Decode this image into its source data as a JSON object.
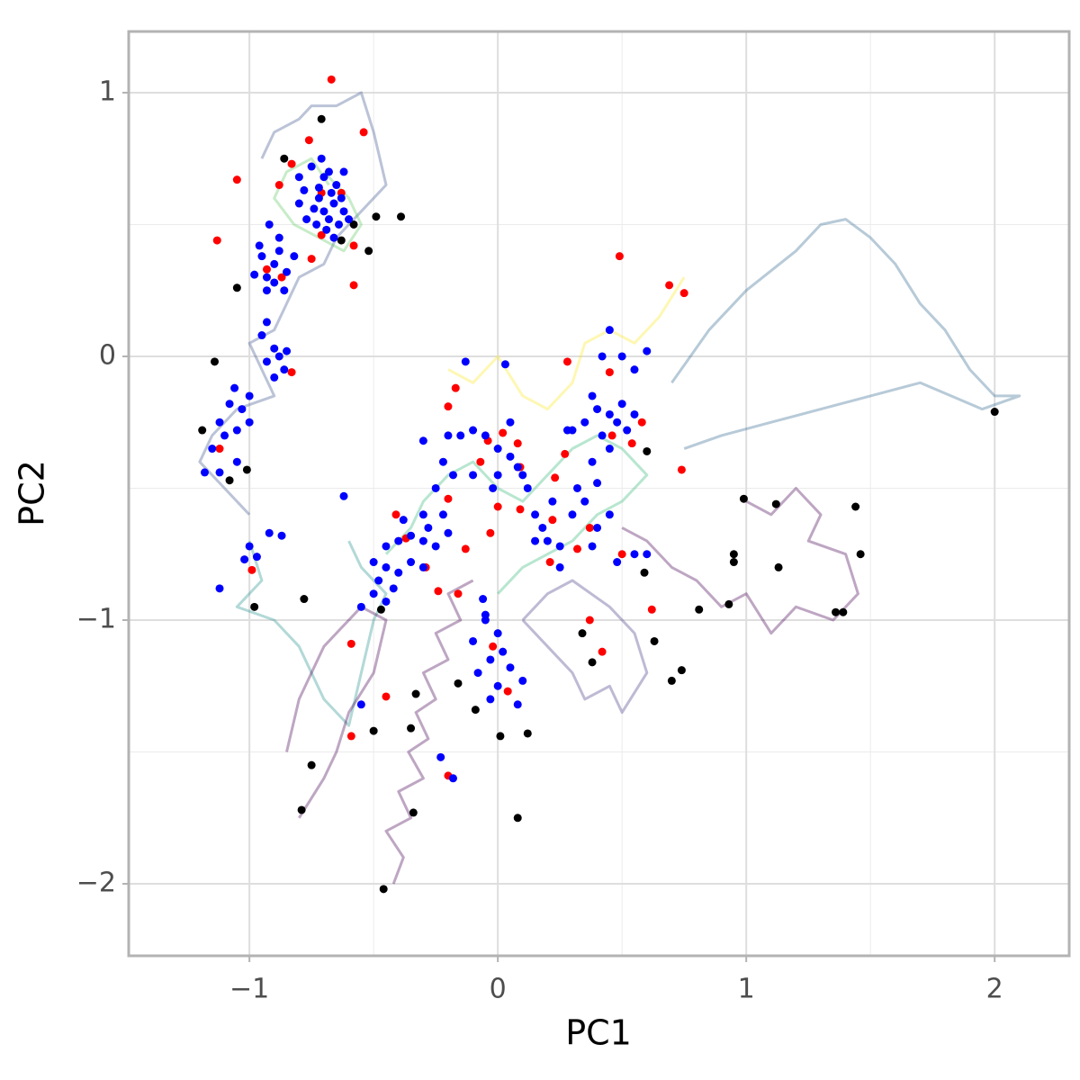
{
  "chart_data": {
    "type": "scatter",
    "x_label": "PC1",
    "y_label": "PC2",
    "xlim": [
      -1.486,
      2.3
    ],
    "ylim": [
      -2.273,
      1.232
    ],
    "xticks": [
      {
        "value": -1,
        "label": "−1"
      },
      0,
      1,
      2
    ],
    "yticks": [
      {
        "value": -2,
        "label": "−2"
      },
      {
        "value": -1,
        "label": "−1"
      },
      0,
      1
    ],
    "xminorticks": [
      -0.5,
      0.5,
      1.5
    ],
    "yminorticks": [
      -1.5,
      -0.5,
      0.5
    ],
    "grid": true,
    "series": [
      {
        "type": "line",
        "color": "#440154",
        "opacity": 0.35,
        "x": [
          -0.42,
          -0.38,
          -0.45,
          -0.35,
          -0.4,
          -0.3,
          -0.36,
          -0.28,
          -0.33,
          -0.25,
          -0.3,
          -0.2,
          -0.25,
          -0.15,
          -0.2,
          -0.1
        ],
        "values": [
          -2.0,
          -1.9,
          -1.8,
          -1.75,
          -1.65,
          -1.6,
          -1.5,
          -1.45,
          -1.35,
          -1.3,
          -1.2,
          -1.15,
          -1.05,
          -1.0,
          -0.9,
          -0.85
        ]
      },
      {
        "type": "line",
        "color": "#440154",
        "opacity": 0.35,
        "x": [
          1.0,
          1.1,
          1.2,
          1.3,
          1.25,
          1.4,
          1.45,
          1.35,
          1.2,
          1.1,
          1.0,
          0.9,
          0.8,
          0.7,
          0.6,
          0.5
        ],
        "values": [
          -0.55,
          -0.6,
          -0.5,
          -0.6,
          -0.7,
          -0.75,
          -0.9,
          -1.0,
          -0.95,
          -1.05,
          -0.9,
          -0.95,
          -0.85,
          -0.8,
          -0.7,
          -0.65
        ]
      },
      {
        "type": "line",
        "color": "#31688e",
        "opacity": 0.35,
        "x": [
          0.7,
          0.85,
          1.0,
          1.2,
          1.3,
          1.4,
          1.5,
          1.6,
          1.7,
          1.8,
          1.9,
          2.0,
          2.1,
          1.95,
          1.7,
          1.5,
          1.3,
          1.1,
          0.9,
          0.75
        ],
        "values": [
          -0.1,
          0.1,
          0.25,
          0.4,
          0.5,
          0.52,
          0.45,
          0.35,
          0.2,
          0.1,
          -0.05,
          -0.15,
          -0.15,
          -0.2,
          -0.1,
          -0.15,
          -0.2,
          -0.25,
          -0.3,
          -0.35
        ]
      },
      {
        "type": "line",
        "color": "#35b779",
        "opacity": 0.35,
        "x": [
          -0.45,
          -0.35,
          -0.3,
          -0.2,
          -0.1,
          0.0,
          0.1,
          0.2,
          0.3,
          0.4,
          0.5,
          0.6,
          0.5,
          0.4,
          0.3,
          0.2,
          0.1,
          0.0
        ],
        "values": [
          -0.75,
          -0.65,
          -0.55,
          -0.45,
          -0.4,
          -0.5,
          -0.55,
          -0.45,
          -0.35,
          -0.3,
          -0.35,
          -0.45,
          -0.55,
          -0.6,
          -0.7,
          -0.75,
          -0.8,
          -0.9
        ]
      },
      {
        "type": "line",
        "color": "#fde725",
        "opacity": 0.35,
        "x": [
          -0.2,
          -0.1,
          0.0,
          0.1,
          0.2,
          0.3,
          0.35,
          0.45,
          0.55,
          0.65,
          0.75
        ],
        "values": [
          -0.05,
          -0.1,
          0.0,
          -0.15,
          -0.2,
          -0.1,
          0.05,
          0.1,
          0.05,
          0.15,
          0.3
        ]
      },
      {
        "type": "line",
        "color": "#3b528b",
        "opacity": 0.35,
        "x": [
          -0.95,
          -0.9,
          -0.8,
          -0.75,
          -0.65,
          -0.55,
          -0.5,
          -0.45,
          -0.55,
          -0.65,
          -0.7,
          -0.8,
          -0.85,
          -0.9,
          -1.0,
          -0.95,
          -0.9,
          -1.05,
          -1.15,
          -1.2,
          -1.1,
          -1.0
        ],
        "values": [
          0.75,
          0.85,
          0.9,
          0.95,
          0.95,
          1.0,
          0.85,
          0.65,
          0.55,
          0.45,
          0.35,
          0.3,
          0.2,
          0.1,
          0.05,
          -0.05,
          -0.15,
          -0.2,
          -0.3,
          -0.4,
          -0.5,
          -0.6
        ]
      },
      {
        "type": "line",
        "color": "#21918c",
        "opacity": 0.35,
        "x": [
          -1.0,
          -0.95,
          -1.05,
          -0.9,
          -0.8,
          -0.7,
          -0.6,
          -0.55,
          -0.5,
          -0.45,
          -0.55,
          -0.6
        ],
        "values": [
          -0.7,
          -0.85,
          -0.95,
          -1.0,
          -1.1,
          -1.3,
          -1.4,
          -1.2,
          -1.0,
          -0.9,
          -0.8,
          -0.7
        ]
      },
      {
        "type": "line",
        "color": "#440154",
        "opacity": 0.35,
        "x": [
          -0.8,
          -0.7,
          -0.65,
          -0.6,
          -0.5,
          -0.45,
          -0.55,
          -0.7,
          -0.8,
          -0.85
        ],
        "values": [
          -1.75,
          -1.6,
          -1.5,
          -1.35,
          -1.2,
          -1.0,
          -0.95,
          -1.1,
          -1.3,
          -1.5
        ]
      },
      {
        "type": "line",
        "color": "#5ec962",
        "opacity": 0.35,
        "x": [
          -0.7,
          -0.6,
          -0.55,
          -0.62,
          -0.72,
          -0.82,
          -0.9,
          -0.85,
          -0.75,
          -0.68
        ],
        "values": [
          0.7,
          0.6,
          0.5,
          0.4,
          0.45,
          0.5,
          0.6,
          0.7,
          0.75,
          0.65
        ]
      },
      {
        "type": "line",
        "color": "#443983",
        "opacity": 0.35,
        "x": [
          0.1,
          0.2,
          0.3,
          0.35,
          0.45,
          0.5,
          0.6,
          0.55,
          0.45,
          0.3,
          0.2,
          0.1
        ],
        "values": [
          -1.0,
          -1.1,
          -1.2,
          -1.3,
          -1.25,
          -1.35,
          -1.2,
          -1.05,
          -0.95,
          -0.85,
          -0.9,
          -1.0
        ]
      },
      {
        "type": "scatter",
        "color": "#000000",
        "x": [
          -0.71,
          -0.86,
          -0.49,
          -0.39,
          -0.58,
          -0.63,
          -0.52,
          -1.05,
          -1.14,
          -1.19,
          -1.01,
          -1.08,
          -0.98,
          -0.78,
          -0.47,
          -0.33,
          -0.5,
          -0.35,
          -0.16,
          -0.09,
          0.01,
          0.12,
          -0.75,
          -0.79,
          -0.34,
          0.08,
          -0.46,
          0.34,
          0.38,
          0.63,
          0.7,
          0.6,
          0.59,
          0.81,
          0.93,
          0.99,
          1.12,
          0.95,
          0.95,
          1.13,
          1.44,
          1.46,
          1.36,
          1.39,
          2.0,
          0.74
        ],
        "values": [
          0.9,
          0.75,
          0.53,
          0.53,
          0.5,
          0.44,
          0.4,
          0.26,
          -0.02,
          -0.28,
          -0.43,
          -0.47,
          -0.95,
          -0.92,
          -0.96,
          -1.28,
          -1.42,
          -1.41,
          -1.24,
          -1.34,
          -1.44,
          -1.43,
          -1.55,
          -1.72,
          -1.73,
          -1.75,
          -2.02,
          -1.05,
          -1.16,
          -1.08,
          -1.23,
          -0.36,
          -0.82,
          -0.96,
          -0.94,
          -0.54,
          -0.56,
          -0.75,
          -0.78,
          -0.8,
          -0.57,
          -0.75,
          -0.97,
          -0.97,
          -0.21,
          -1.19
        ]
      },
      {
        "type": "scatter",
        "color": "#ff0000",
        "x": [
          -0.67,
          -0.54,
          -1.05,
          -0.76,
          -0.83,
          -0.88,
          -0.71,
          -0.63,
          -0.75,
          -0.93,
          -0.87,
          -1.13,
          -0.71,
          -0.58,
          -0.58,
          0.49,
          0.69,
          0.75,
          -0.83,
          -1.12,
          -0.99,
          0.28,
          -0.17,
          -0.2,
          -0.04,
          0.02,
          0.08,
          -0.07,
          0.27,
          0.23,
          0.09,
          0.45,
          0.46,
          0.54,
          0.58,
          0.74,
          -0.2,
          -0.41,
          0.0,
          0.09,
          0.22,
          0.37,
          -0.37,
          -0.13,
          -0.29,
          -0.24,
          -0.16,
          0.32,
          0.21,
          0.5,
          -0.03,
          0.62,
          0.37,
          0.42,
          -0.02,
          -0.59,
          -0.45,
          -0.59,
          0.04,
          -0.2
        ],
        "values": [
          1.05,
          0.85,
          0.67,
          0.82,
          0.73,
          0.65,
          0.62,
          0.62,
          0.37,
          0.33,
          0.3,
          0.44,
          0.46,
          0.27,
          0.42,
          0.38,
          0.27,
          0.24,
          -0.06,
          -0.35,
          -0.81,
          -0.02,
          -0.12,
          -0.19,
          -0.32,
          -0.29,
          -0.33,
          -0.4,
          -0.37,
          -0.46,
          -0.42,
          -0.06,
          -0.3,
          -0.33,
          -0.25,
          -0.43,
          -0.54,
          -0.6,
          -0.57,
          -0.58,
          -0.62,
          -0.65,
          -0.69,
          -0.73,
          -0.8,
          -0.89,
          -0.9,
          -0.73,
          -0.78,
          -0.75,
          -0.67,
          -0.96,
          -1.0,
          -1.12,
          -1.1,
          -1.09,
          -1.29,
          -1.44,
          -1.27,
          -1.59
        ]
      },
      {
        "type": "scatter",
        "color": "#0000ff",
        "x": [
          -0.75,
          -0.7,
          -0.68,
          -0.65,
          -0.72,
          -0.7,
          -0.66,
          -0.62,
          -0.74,
          -0.68,
          -0.64,
          -0.6,
          -0.78,
          -0.8,
          -0.72,
          -0.67,
          -0.63,
          -0.69,
          -0.73,
          -0.77,
          -0.71,
          -0.62,
          -0.66,
          -0.8,
          -0.95,
          -0.9,
          -0.88,
          -0.93,
          -0.85,
          -0.98,
          -0.9,
          -0.86,
          -0.93,
          -0.82,
          -0.88,
          -0.96,
          -0.92,
          -0.9,
          -0.88,
          -0.93,
          -0.86,
          -0.9,
          -0.95,
          -0.93,
          -0.85,
          -1.08,
          -1.03,
          -1.0,
          -1.05,
          -1.1,
          -1.0,
          -1.06,
          -1.12,
          -1.15,
          -1.12,
          -1.05,
          -1.18,
          -1.0,
          -1.02,
          -0.97,
          -1.12,
          -0.92,
          -0.87,
          -0.45,
          -0.4,
          -0.35,
          -0.3,
          -0.25,
          -0.45,
          -0.4,
          -0.35,
          -0.3,
          -0.5,
          -0.48,
          -0.42,
          -0.5,
          -0.3,
          -0.28,
          -0.22,
          -0.25,
          -0.22,
          -0.2,
          -0.15,
          -0.1,
          -0.18,
          -0.1,
          -0.38,
          -0.55,
          -0.45,
          -0.2,
          -0.3,
          -0.05,
          0.0,
          0.02,
          -0.03,
          -0.08,
          0.05,
          0.0,
          -0.05,
          -0.06,
          -0.1,
          0.08,
          -0.03,
          -0.05,
          0.0,
          0.05,
          0.08,
          0.0,
          -0.02,
          0.1,
          0.12,
          0.05,
          0.15,
          0.18,
          0.2,
          0.25,
          0.15,
          0.25,
          0.22,
          0.3,
          0.38,
          0.4,
          0.45,
          0.48,
          0.5,
          0.42,
          0.45,
          0.52,
          0.35,
          0.3,
          0.38,
          0.4,
          0.35,
          0.32,
          0.55,
          0.45,
          0.5,
          0.55,
          0.6,
          0.42,
          0.28,
          0.45,
          0.4,
          0.38,
          0.48,
          0.55,
          0.6,
          -0.13,
          0.03,
          -0.62,
          -0.55,
          0.1,
          -0.18,
          -0.23
        ],
        "values": [
          0.72,
          0.68,
          0.7,
          0.65,
          0.6,
          0.55,
          0.58,
          0.55,
          0.56,
          0.52,
          0.5,
          0.52,
          0.63,
          0.58,
          0.64,
          0.62,
          0.6,
          0.48,
          0.5,
          0.52,
          0.75,
          0.7,
          0.45,
          0.68,
          0.38,
          0.35,
          0.4,
          0.3,
          0.32,
          0.31,
          0.28,
          0.25,
          0.25,
          0.38,
          0.45,
          0.42,
          0.5,
          0.03,
          0.0,
          -0.02,
          -0.05,
          -0.08,
          0.08,
          0.13,
          0.02,
          -0.18,
          -0.2,
          -0.15,
          -0.28,
          -0.3,
          -0.25,
          -0.12,
          -0.25,
          -0.35,
          -0.44,
          -0.4,
          -0.44,
          -0.72,
          -0.77,
          -0.76,
          -0.88,
          -0.67,
          -0.68,
          -0.72,
          -0.7,
          -0.68,
          -0.7,
          -0.72,
          -0.8,
          -0.82,
          -0.78,
          -0.8,
          -0.78,
          -0.85,
          -0.88,
          -0.9,
          -0.6,
          -0.65,
          -0.6,
          -0.5,
          -0.4,
          -0.3,
          -0.3,
          -0.28,
          -0.45,
          -0.45,
          -0.62,
          -0.95,
          -0.93,
          -0.67,
          -0.32,
          -1.0,
          -1.05,
          -1.12,
          -1.15,
          -1.2,
          -1.18,
          -1.25,
          -0.98,
          -0.92,
          -1.08,
          -1.32,
          -1.3,
          -0.3,
          -0.35,
          -0.38,
          -0.42,
          -0.45,
          -0.5,
          -0.45,
          -0.5,
          -0.25,
          -0.6,
          -0.65,
          -0.7,
          -0.72,
          -0.7,
          -0.8,
          -0.55,
          -0.6,
          -0.15,
          -0.2,
          -0.22,
          -0.25,
          -0.18,
          -0.3,
          -0.35,
          -0.28,
          -0.25,
          -0.28,
          -0.4,
          -0.48,
          -0.55,
          -0.5,
          -0.22,
          0.1,
          0.0,
          -0.05,
          0.02,
          0.0,
          -0.28,
          -0.6,
          -0.65,
          -0.72,
          -0.78,
          -0.75,
          -0.75,
          -0.02,
          -0.03,
          -0.53,
          -1.32,
          -1.23,
          -1.6,
          -1.52
        ]
      }
    ]
  }
}
